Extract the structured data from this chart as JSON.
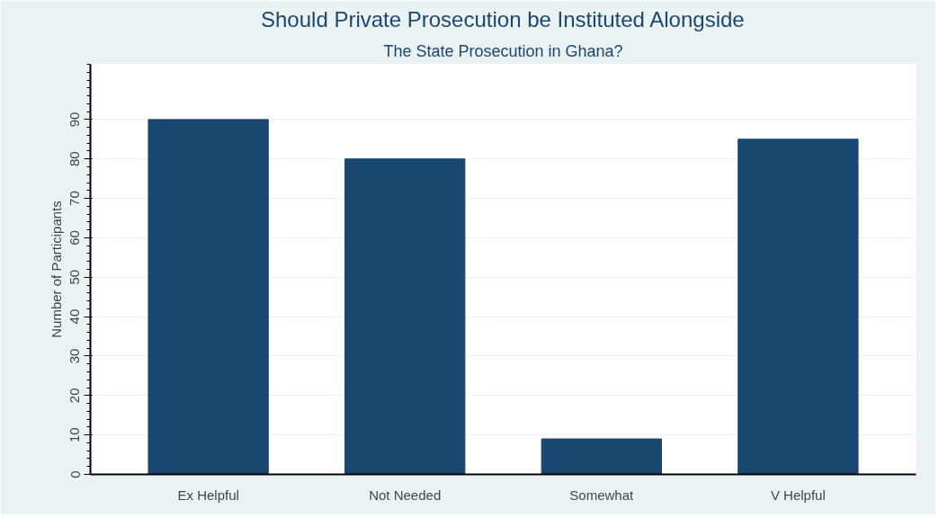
{
  "chart_data": {
    "type": "bar",
    "title": "Should Private Prosecution be Instituted Alongside",
    "subtitle": "The State Prosecution in Ghana?",
    "ylabel": "Number of Participants",
    "categories": [
      "Ex Helpful",
      "Not Needed",
      "Somewhat",
      "V Helpful"
    ],
    "values": [
      90,
      80,
      9,
      85
    ],
    "color": "#1a476f",
    "ylim": [
      0,
      104
    ],
    "yticks": [
      0,
      10,
      20,
      30,
      40,
      50,
      60,
      70,
      80,
      90
    ],
    "grid": "y"
  }
}
